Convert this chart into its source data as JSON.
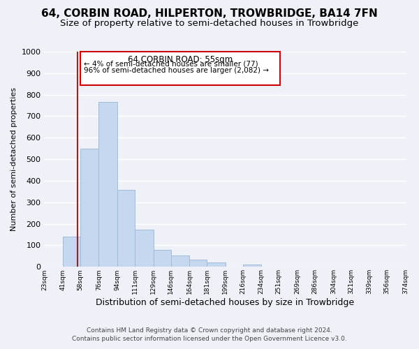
{
  "title": "64, CORBIN ROAD, HILPERTON, TROWBRIDGE, BA14 7FN",
  "subtitle": "Size of property relative to semi-detached houses in Trowbridge",
  "xlabel": "Distribution of semi-detached houses by size in Trowbridge",
  "ylabel": "Number of semi-detached properties",
  "bar_edges": [
    23,
    41,
    58,
    76,
    94,
    111,
    129,
    146,
    164,
    181,
    199,
    216,
    234,
    251,
    269,
    286,
    304,
    321,
    339,
    356,
    374
  ],
  "bar_heights": [
    0,
    140,
    548,
    768,
    358,
    173,
    80,
    52,
    35,
    20,
    0,
    10,
    0,
    0,
    0,
    0,
    0,
    0,
    0,
    0
  ],
  "bar_color": "#c5d8f0",
  "bar_edge_color": "#a0bcd8",
  "marker_x": 55,
  "marker_color": "#cc0000",
  "ylim": [
    0,
    1000
  ],
  "xlim": [
    23,
    374
  ],
  "annotation_title": "64 CORBIN ROAD: 55sqm",
  "annotation_line1": "← 4% of semi-detached houses are smaller (77)",
  "annotation_line2": "96% of semi-detached houses are larger (2,082) →",
  "annotation_box_color": "#cc0000",
  "footer1": "Contains HM Land Registry data © Crown copyright and database right 2024.",
  "footer2": "Contains public sector information licensed under the Open Government Licence v3.0.",
  "tick_labels": [
    "23sqm",
    "41sqm",
    "58sqm",
    "76sqm",
    "94sqm",
    "111sqm",
    "129sqm",
    "146sqm",
    "164sqm",
    "181sqm",
    "199sqm",
    "216sqm",
    "234sqm",
    "251sqm",
    "269sqm",
    "286sqm",
    "304sqm",
    "321sqm",
    "339sqm",
    "356sqm",
    "374sqm"
  ],
  "background_color": "#eef2f8",
  "grid_color": "#ffffff",
  "title_fontsize": 11,
  "subtitle_fontsize": 9.5,
  "yticks": [
    0,
    100,
    200,
    300,
    400,
    500,
    600,
    700,
    800,
    900,
    1000
  ]
}
